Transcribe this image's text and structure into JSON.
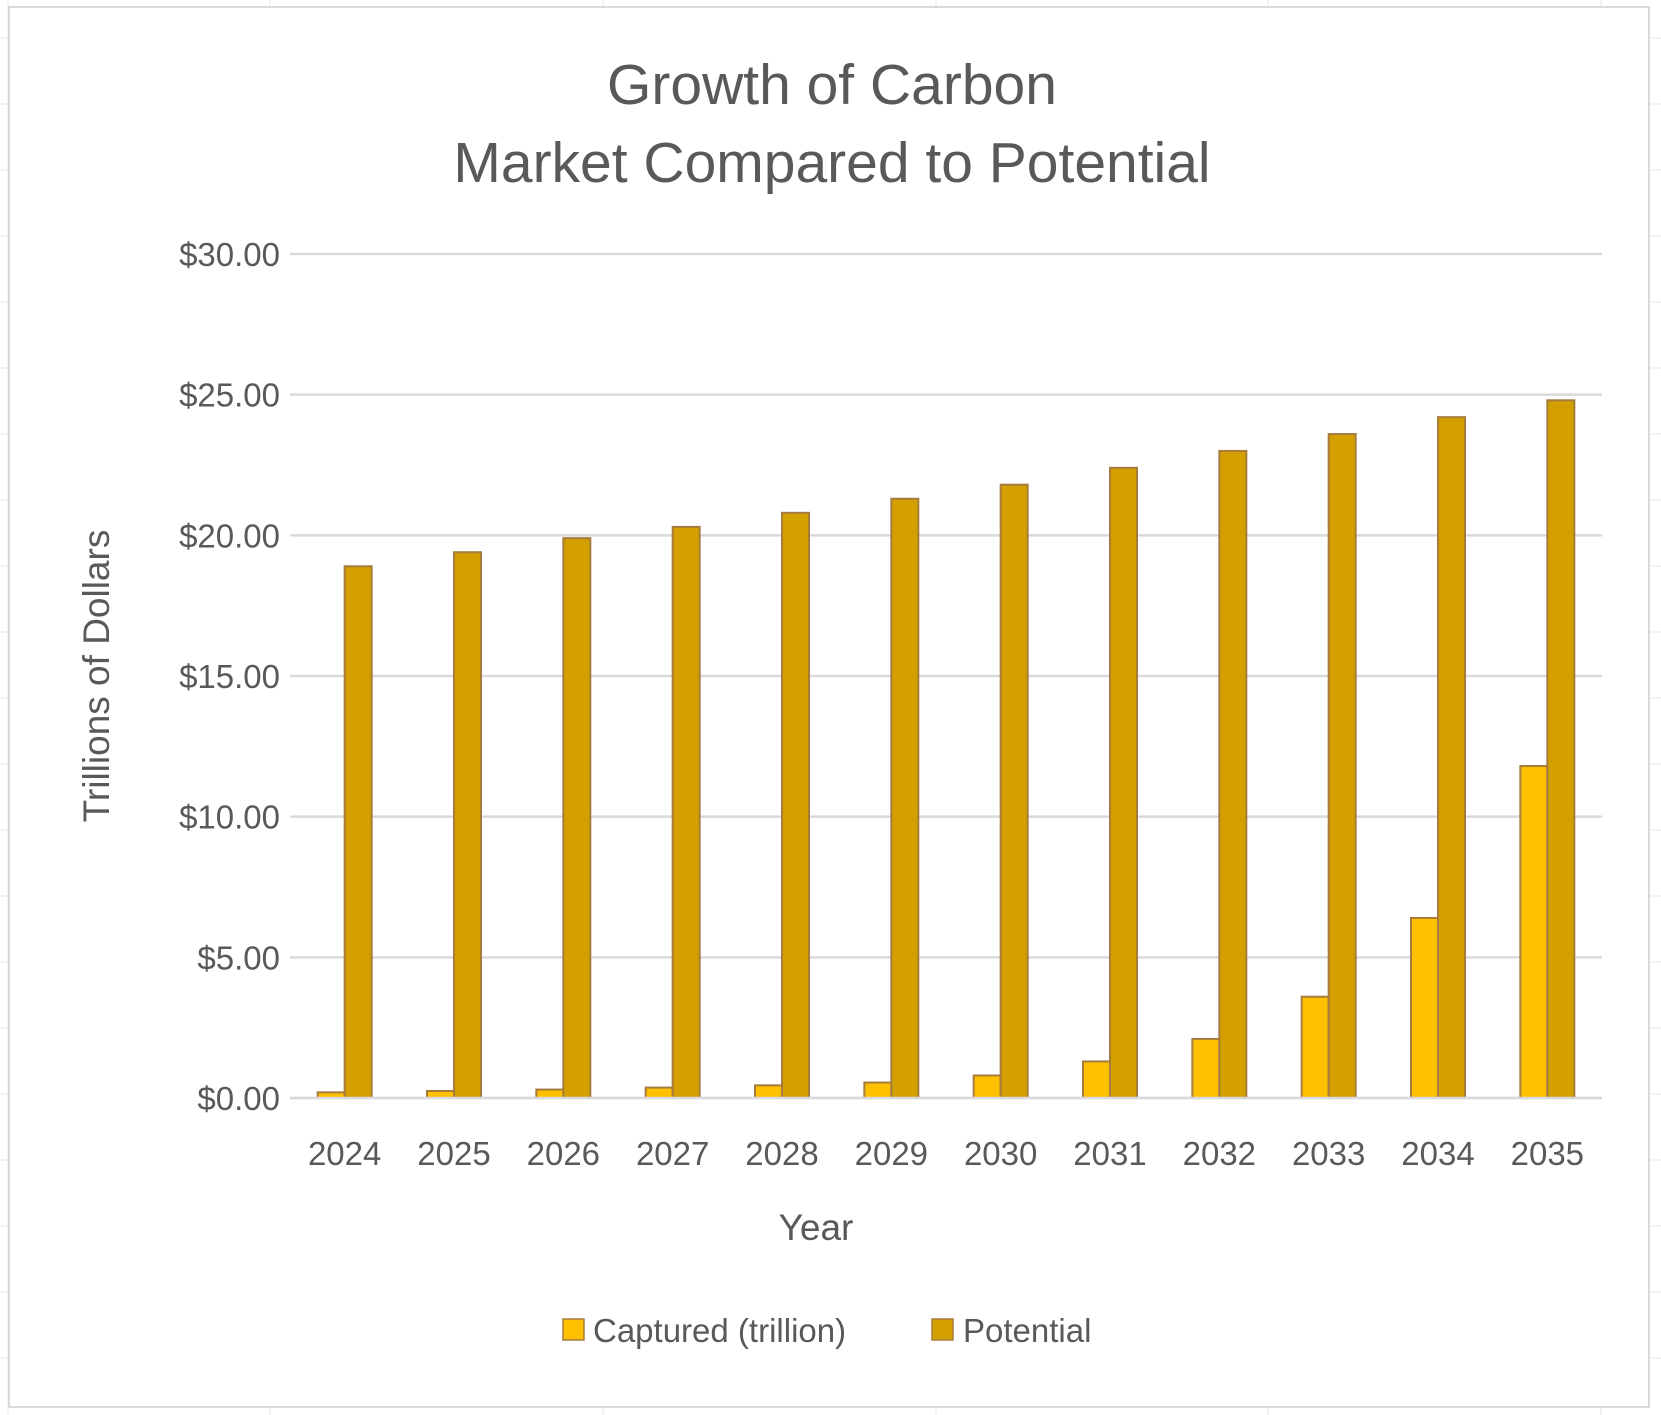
{
  "chart_data": {
    "type": "bar",
    "title": [
      "Growth of Carbon",
      "Market Compared to Potential"
    ],
    "xlabel": "Year",
    "ylabel": "Trillions of Dollars",
    "ylim": [
      0,
      30
    ],
    "y_ticks": [
      0,
      5,
      10,
      15,
      20,
      25,
      30
    ],
    "y_tick_labels": [
      "$0.00",
      "$5.00",
      "$10.00",
      "$15.00",
      "$20.00",
      "$25.00",
      "$30.00"
    ],
    "grid": true,
    "legend_position": "bottom",
    "categories": [
      "2024",
      "2025",
      "2026",
      "2027",
      "2028",
      "2029",
      "2030",
      "2031",
      "2032",
      "2033",
      "2034",
      "2035"
    ],
    "series": [
      {
        "name": "Captured (trillion)",
        "color": "#FFC000",
        "values": [
          0.2,
          0.25,
          0.3,
          0.37,
          0.45,
          0.55,
          0.8,
          1.3,
          2.1,
          3.6,
          6.4,
          11.8
        ]
      },
      {
        "name": "Potential",
        "color": "#D4A000",
        "values": [
          18.9,
          19.4,
          19.9,
          20.3,
          20.8,
          21.3,
          21.8,
          22.4,
          23.0,
          23.6,
          24.2,
          24.8
        ]
      }
    ],
    "bar_outline_color": "#A67C3D",
    "gridline_color": "#d9d9d9",
    "text_color": "#595959"
  }
}
